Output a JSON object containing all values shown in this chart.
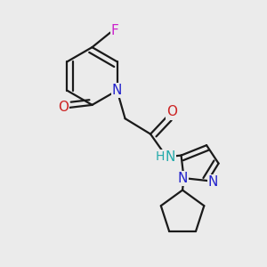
{
  "background_color": "#ebebeb",
  "bond_color": "#1a1a1a",
  "bond_width": 1.6,
  "atom_bg": "#ebebeb",
  "atoms": {
    "N_ring": {
      "label": "N",
      "color": "#2222cc"
    },
    "O_ring": {
      "label": "O",
      "color": "#cc2222"
    },
    "F": {
      "label": "F",
      "color": "#cc22cc"
    },
    "O_amide": {
      "label": "O",
      "color": "#cc2222"
    },
    "NH": {
      "label": "H",
      "color": "#22aaaa"
    },
    "N_label": {
      "label": "N",
      "color": "#22aaaa"
    },
    "N1_pz": {
      "label": "N",
      "color": "#2222cc"
    },
    "N2_pz": {
      "label": "N",
      "color": "#2222cc"
    }
  }
}
